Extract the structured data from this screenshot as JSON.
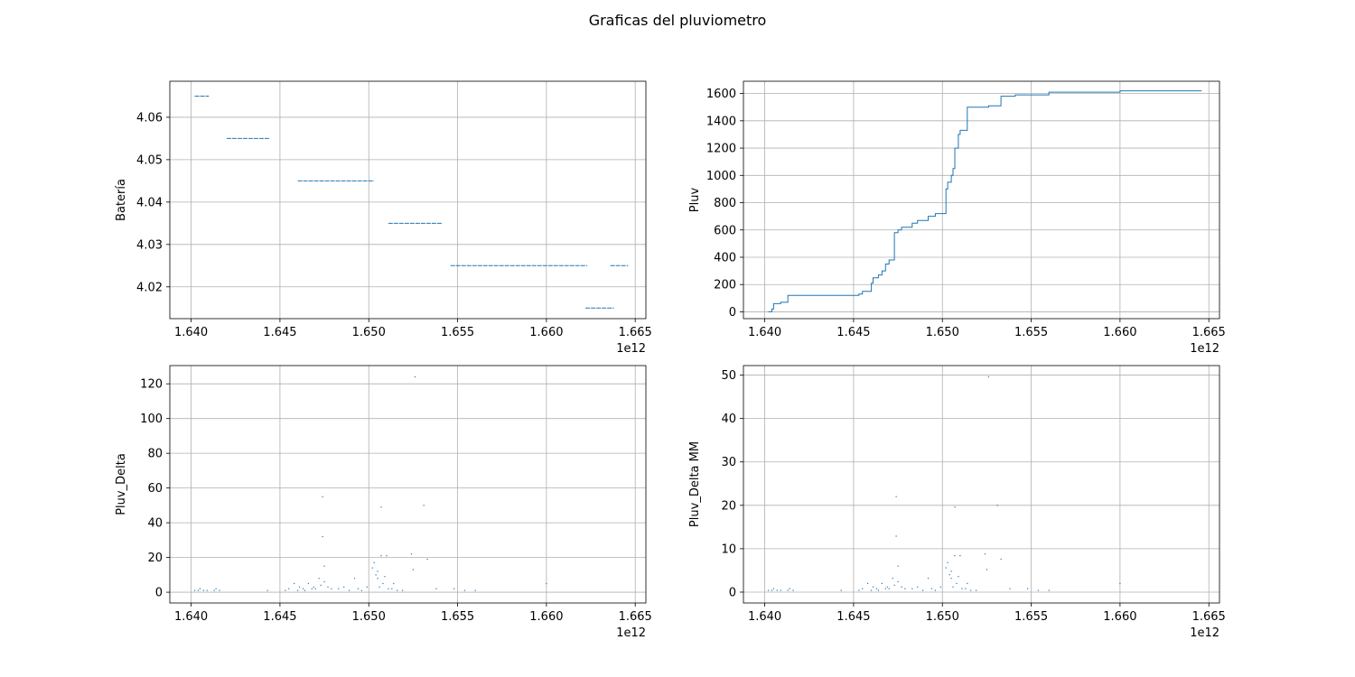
{
  "figure": {
    "title": "Graficas del pluviometro"
  },
  "chart_data": [
    {
      "type": "scatter",
      "id": "bateria",
      "ylabel": "Batería",
      "x_offset_label": "1e12",
      "xlim": [
        1.6388,
        1.6656
      ],
      "ylim": [
        4.0125,
        4.0685
      ],
      "x_ticks": [
        1.64,
        1.645,
        1.65,
        1.655,
        1.66,
        1.665
      ],
      "x_tick_labels": [
        "1.640",
        "1.645",
        "1.650",
        "1.655",
        "1.660",
        "1.665"
      ],
      "y_ticks": [
        4.02,
        4.03,
        4.04,
        4.05,
        4.06
      ],
      "y_tick_labels": [
        "4.02",
        "4.03",
        "4.04",
        "4.05",
        "4.06"
      ],
      "grid": true,
      "color": "#1f77b4",
      "segments": [
        {
          "y": 4.065,
          "x": [
            1.6402,
            1.641
          ]
        },
        {
          "y": 4.055,
          "x": [
            1.642,
            1.6444
          ]
        },
        {
          "y": 4.045,
          "x": [
            1.646,
            1.6503
          ]
        },
        {
          "y": 4.035,
          "x": [
            1.6511,
            1.6541
          ]
        },
        {
          "y": 4.025,
          "x": [
            1.6546,
            1.6623
          ]
        },
        {
          "y": 4.025,
          "x": [
            1.6636,
            1.6646
          ]
        },
        {
          "y": 4.015,
          "x": [
            1.6622,
            1.6638
          ]
        }
      ]
    },
    {
      "type": "line",
      "id": "pluv",
      "ylabel": "Pluv",
      "x_offset_label": "1e12",
      "xlim": [
        1.6388,
        1.6656
      ],
      "ylim": [
        -50,
        1690
      ],
      "x_ticks": [
        1.64,
        1.645,
        1.65,
        1.655,
        1.66,
        1.665
      ],
      "x_tick_labels": [
        "1.640",
        "1.645",
        "1.650",
        "1.655",
        "1.660",
        "1.665"
      ],
      "y_ticks": [
        0,
        200,
        400,
        600,
        800,
        1000,
        1200,
        1400,
        1600
      ],
      "y_tick_labels": [
        "0",
        "200",
        "400",
        "600",
        "800",
        "1000",
        "1200",
        "1400",
        "1600"
      ],
      "grid": true,
      "color": "#1f77b4",
      "x": [
        1.6402,
        1.6404,
        1.6404,
        1.6405,
        1.6405,
        1.6409,
        1.6409,
        1.6413,
        1.6413,
        1.6453,
        1.6453,
        1.6455,
        1.6455,
        1.646,
        1.646,
        1.6461,
        1.6461,
        1.6464,
        1.6464,
        1.6466,
        1.6466,
        1.6468,
        1.6468,
        1.647,
        1.647,
        1.6473,
        1.6473,
        1.6475,
        1.6475,
        1.6477,
        1.6477,
        1.6483,
        1.6483,
        1.6486,
        1.6486,
        1.6492,
        1.6492,
        1.6496,
        1.6496,
        1.6502,
        1.6502,
        1.6503,
        1.6503,
        1.6505,
        1.6505,
        1.6506,
        1.6506,
        1.6507,
        1.6507,
        1.6509,
        1.6509,
        1.651,
        1.651,
        1.6514,
        1.6514,
        1.6526,
        1.6526,
        1.6533,
        1.6533,
        1.6541,
        1.6541,
        1.656,
        1.656,
        1.66,
        1.66,
        1.6646
      ],
      "y": [
        0,
        0,
        20,
        20,
        60,
        60,
        70,
        70,
        120,
        120,
        130,
        130,
        150,
        150,
        210,
        210,
        250,
        250,
        270,
        270,
        300,
        300,
        350,
        350,
        380,
        380,
        580,
        580,
        600,
        600,
        620,
        620,
        650,
        650,
        670,
        670,
        700,
        700,
        720,
        720,
        900,
        900,
        950,
        950,
        1000,
        1000,
        1050,
        1050,
        1200,
        1200,
        1300,
        1300,
        1330,
        1330,
        1500,
        1500,
        1510,
        1510,
        1580,
        1580,
        1590,
        1590,
        1610,
        1610,
        1620,
        1620
      ]
    },
    {
      "type": "scatter",
      "id": "pluv_delta",
      "ylabel": "Pluv_Delta",
      "x_offset_label": "1e12",
      "xlim": [
        1.6388,
        1.6656
      ],
      "ylim": [
        -6.2,
        130.5
      ],
      "x_ticks": [
        1.64,
        1.645,
        1.65,
        1.655,
        1.66,
        1.665
      ],
      "x_tick_labels": [
        "1.640",
        "1.645",
        "1.650",
        "1.655",
        "1.660",
        "1.665"
      ],
      "y_ticks": [
        0,
        20,
        40,
        60,
        80,
        100,
        120
      ],
      "y_tick_labels": [
        "0",
        "20",
        "40",
        "60",
        "80",
        "100",
        "120"
      ],
      "grid": true,
      "color": "#1f77b4",
      "x": [
        1.6402,
        1.6404,
        1.6405,
        1.6407,
        1.6409,
        1.6413,
        1.6414,
        1.6416,
        1.6443,
        1.6453,
        1.6455,
        1.6458,
        1.646,
        1.6461,
        1.6463,
        1.6464,
        1.6466,
        1.6468,
        1.6469,
        1.647,
        1.6472,
        1.6473,
        1.6474,
        1.6474,
        1.6475,
        1.6475,
        1.6477,
        1.6479,
        1.6483,
        1.6486,
        1.6489,
        1.6492,
        1.6494,
        1.6496,
        1.6499,
        1.6502,
        1.6503,
        1.6504,
        1.6505,
        1.6505,
        1.6506,
        1.6507,
        1.6507,
        1.6508,
        1.6509,
        1.651,
        1.6511,
        1.6513,
        1.6514,
        1.6516,
        1.6519,
        1.6524,
        1.6525,
        1.6526,
        1.6531,
        1.6533,
        1.6538,
        1.6548,
        1.6554,
        1.656,
        1.66
      ],
      "y": [
        1,
        1,
        2,
        1,
        1,
        1,
        2,
        1,
        1,
        1,
        2,
        5,
        1,
        3,
        2,
        1,
        5,
        2,
        3,
        2,
        8,
        4,
        32,
        55,
        15,
        6,
        3,
        2,
        2,
        3,
        1,
        8,
        2,
        1,
        3,
        14,
        17,
        10,
        12,
        8,
        3,
        49,
        21,
        5,
        9,
        21,
        2,
        2,
        5,
        1,
        1,
        22,
        13,
        124,
        50,
        19,
        2,
        2,
        1,
        1,
        5
      ]
    },
    {
      "type": "scatter",
      "id": "pluv_delta_mm",
      "ylabel": "Pluv_Delta MM",
      "x_offset_label": "1e12",
      "xlim": [
        1.6388,
        1.6656
      ],
      "ylim": [
        -2.5,
        52.2
      ],
      "x_ticks": [
        1.64,
        1.645,
        1.65,
        1.655,
        1.66,
        1.665
      ],
      "x_tick_labels": [
        "1.640",
        "1.645",
        "1.650",
        "1.655",
        "1.660",
        "1.665"
      ],
      "y_ticks": [
        0,
        10,
        20,
        30,
        40,
        50
      ],
      "y_tick_labels": [
        "0",
        "10",
        "20",
        "30",
        "40",
        "50"
      ],
      "grid": true,
      "color": "#1f77b4",
      "x": [
        1.6402,
        1.6404,
        1.6405,
        1.6407,
        1.6409,
        1.6413,
        1.6414,
        1.6416,
        1.6443,
        1.6453,
        1.6455,
        1.6458,
        1.646,
        1.6461,
        1.6463,
        1.6464,
        1.6466,
        1.6468,
        1.6469,
        1.647,
        1.6472,
        1.6473,
        1.6474,
        1.6474,
        1.6475,
        1.6475,
        1.6477,
        1.6479,
        1.6483,
        1.6486,
        1.6489,
        1.6492,
        1.6494,
        1.6496,
        1.6499,
        1.6502,
        1.6503,
        1.6504,
        1.6505,
        1.6505,
        1.6506,
        1.6507,
        1.6507,
        1.6508,
        1.6509,
        1.651,
        1.6511,
        1.6513,
        1.6514,
        1.6516,
        1.6519,
        1.6524,
        1.6525,
        1.6526,
        1.6531,
        1.6533,
        1.6538,
        1.6548,
        1.6554,
        1.656,
        1.66
      ],
      "y": [
        0.4,
        0.4,
        0.8,
        0.4,
        0.4,
        0.4,
        0.8,
        0.4,
        0.4,
        0.4,
        0.8,
        2.0,
        0.4,
        1.2,
        0.8,
        0.4,
        2.0,
        0.8,
        1.2,
        0.8,
        3.2,
        1.6,
        12.9,
        22.0,
        6.0,
        2.4,
        1.2,
        0.8,
        0.8,
        1.2,
        0.4,
        3.2,
        0.8,
        0.4,
        1.2,
        5.6,
        6.8,
        4.0,
        4.8,
        3.2,
        1.2,
        19.6,
        8.4,
        2.0,
        3.6,
        8.4,
        0.8,
        0.8,
        2.0,
        0.4,
        0.4,
        8.8,
        5.2,
        49.6,
        20.0,
        7.6,
        0.8,
        0.8,
        0.4,
        0.4,
        2.0
      ]
    }
  ]
}
